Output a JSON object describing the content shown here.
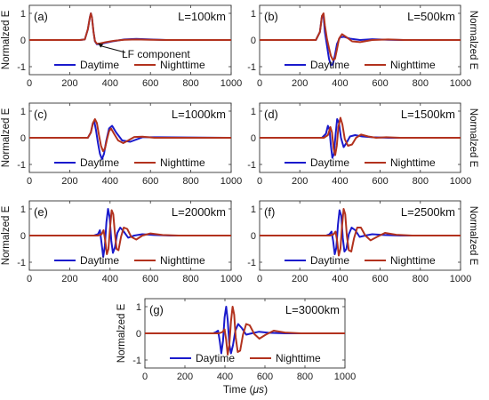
{
  "figure": {
    "ylabel": "Normalzed E",
    "xlabel": "Time (",
    "xlabel_unit": "μs",
    "xlabel_close": ")"
  },
  "chart_data": [
    {
      "type": "line",
      "panel": "(a)",
      "title": "L=100km",
      "ylabel": "Normalzed E",
      "xlim": [
        0,
        1000
      ],
      "ylim": [
        -1.3,
        1.3
      ],
      "xticks": [
        0,
        200,
        400,
        600,
        800,
        1000
      ],
      "yticks": [
        1,
        0,
        -1
      ],
      "xlabel": "",
      "legend_placement": "bottom",
      "annotation": {
        "text": "LF component",
        "arrow_to": [
          340,
          -0.12
        ]
      },
      "series": [
        {
          "name": "Daytime",
          "color": "#1a1acc",
          "x": [
            0,
            250,
            275,
            290,
            300,
            305,
            310,
            318,
            325,
            335,
            350,
            380,
            420,
            470,
            530,
            600,
            680,
            760,
            1000
          ],
          "y": [
            0,
            0,
            0.02,
            0.4,
            0.85,
            1.0,
            0.85,
            0.3,
            -0.05,
            -0.16,
            -0.15,
            -0.1,
            -0.04,
            0.02,
            0.04,
            0.02,
            0,
            0,
            0
          ]
        },
        {
          "name": "Nighttime",
          "color": "#b2321e",
          "x": [
            0,
            250,
            275,
            290,
            300,
            305,
            310,
            318,
            325,
            335,
            350,
            380,
            420,
            470,
            530,
            600,
            680,
            760,
            1000
          ],
          "y": [
            0,
            0,
            0.02,
            0.4,
            0.85,
            1.0,
            0.85,
            0.3,
            -0.04,
            -0.14,
            -0.13,
            -0.08,
            -0.03,
            0.01,
            0.02,
            0.01,
            0,
            0,
            0
          ]
        }
      ]
    },
    {
      "type": "line",
      "panel": "(b)",
      "title": "L=500km",
      "ylabel": "Normalzed E",
      "xlim": [
        0,
        1000
      ],
      "ylim": [
        -1.3,
        1.3
      ],
      "xticks": [
        0,
        200,
        400,
        600,
        800,
        1000
      ],
      "yticks": [
        1,
        0,
        -1
      ],
      "xlabel": "",
      "legend_placement": "bottom",
      "series": [
        {
          "name": "Daytime",
          "color": "#1a1acc",
          "x": [
            0,
            280,
            300,
            310,
            318,
            325,
            335,
            345,
            355,
            365,
            375,
            385,
            400,
            420,
            450,
            500,
            560,
            640,
            720,
            1000
          ],
          "y": [
            0,
            0,
            0.3,
            0.9,
            0.9,
            0.3,
            -0.2,
            -0.7,
            -0.95,
            -0.9,
            -0.55,
            -0.15,
            0.1,
            0.12,
            0.05,
            0.0,
            0.03,
            0.01,
            0,
            0
          ]
        },
        {
          "name": "Nighttime",
          "color": "#b2321e",
          "x": [
            0,
            280,
            300,
            310,
            318,
            325,
            335,
            345,
            355,
            365,
            375,
            385,
            395,
            410,
            430,
            460,
            500,
            560,
            640,
            720,
            1000
          ],
          "y": [
            0,
            0,
            0.3,
            0.9,
            1.0,
            0.55,
            0.05,
            -0.3,
            -0.6,
            -0.75,
            -0.7,
            -0.35,
            0.05,
            0.22,
            0.12,
            -0.05,
            -0.08,
            0.0,
            0.02,
            0,
            0
          ]
        }
      ]
    },
    {
      "type": "line",
      "panel": "(c)",
      "title": "L=1000km",
      "ylabel": "Normalzed E",
      "xlim": [
        0,
        1000
      ],
      "ylim": [
        -1.3,
        1.3
      ],
      "xticks": [
        0,
        200,
        400,
        600,
        800,
        1000
      ],
      "yticks": [
        1,
        0,
        -1
      ],
      "xlabel": "",
      "legend_placement": "bottom",
      "series": [
        {
          "name": "Daytime",
          "color": "#1a1acc",
          "x": [
            0,
            290,
            305,
            315,
            322,
            330,
            340,
            350,
            360,
            370,
            380,
            395,
            410,
            430,
            460,
            500,
            560,
            640,
            1000
          ],
          "y": [
            0,
            0,
            0.2,
            0.55,
            0.6,
            0.3,
            -0.2,
            -0.6,
            -0.8,
            -0.6,
            -0.15,
            0.35,
            0.45,
            0.2,
            -0.1,
            -0.15,
            0.02,
            0.02,
            0
          ]
        },
        {
          "name": "Nighttime",
          "color": "#b2321e",
          "x": [
            0,
            290,
            305,
            315,
            325,
            335,
            345,
            355,
            365,
            375,
            385,
            395,
            405,
            420,
            440,
            465,
            490,
            520,
            560,
            620,
            700,
            1000
          ],
          "y": [
            0,
            0,
            0.2,
            0.55,
            0.7,
            0.55,
            0.1,
            -0.3,
            -0.5,
            -0.4,
            -0.05,
            0.25,
            0.35,
            0.15,
            -0.1,
            -0.2,
            -0.1,
            0.03,
            0.04,
            0.0,
            0,
            0
          ]
        }
      ]
    },
    {
      "type": "line",
      "panel": "(d)",
      "title": "L=1500km",
      "ylabel": "Normalzed E",
      "xlim": [
        0,
        1000
      ],
      "ylim": [
        -1.3,
        1.3
      ],
      "xticks": [
        0,
        200,
        400,
        600,
        800,
        1000
      ],
      "yticks": [
        1,
        0,
        -1
      ],
      "xlabel": "",
      "legend_placement": "bottom",
      "series": [
        {
          "name": "Daytime",
          "color": "#1a1acc",
          "x": [
            0,
            310,
            330,
            340,
            348,
            355,
            362,
            370,
            378,
            386,
            395,
            405,
            418,
            432,
            450,
            475,
            510,
            560,
            640,
            1000
          ],
          "y": [
            0,
            0,
            0.15,
            0.45,
            0.3,
            -0.3,
            -0.75,
            -0.6,
            0.1,
            0.7,
            0.55,
            0.0,
            -0.35,
            -0.2,
            0.05,
            0.1,
            0.05,
            0.02,
            0,
            0
          ]
        },
        {
          "name": "Nighttime",
          "color": "#b2321e",
          "x": [
            0,
            320,
            340,
            352,
            360,
            368,
            376,
            384,
            392,
            402,
            412,
            424,
            440,
            460,
            480,
            505,
            540,
            580,
            630,
            700,
            1000
          ],
          "y": [
            0,
            0,
            0.1,
            0.4,
            0.2,
            -0.4,
            -0.65,
            -0.3,
            0.4,
            0.75,
            0.5,
            -0.05,
            -0.3,
            -0.25,
            0.0,
            0.12,
            0.05,
            0.0,
            0.02,
            0,
            0
          ]
        }
      ]
    },
    {
      "type": "line",
      "panel": "(e)",
      "title": "L=2000km",
      "ylabel": "Normalzed E",
      "xlim": [
        0,
        1000
      ],
      "ylim": [
        -1.3,
        1.3
      ],
      "xticks": [
        0,
        200,
        400,
        600,
        800,
        1000
      ],
      "yticks": [
        1,
        0,
        -1
      ],
      "xlabel": "",
      "legend_placement": "bottom",
      "series": [
        {
          "name": "Daytime",
          "color": "#1a1acc",
          "x": [
            0,
            320,
            340,
            350,
            358,
            366,
            374,
            382,
            390,
            398,
            406,
            414,
            424,
            436,
            450,
            468,
            490,
            520,
            560,
            620,
            700,
            1000
          ],
          "y": [
            0,
            0,
            0.05,
            0.2,
            -0.3,
            -0.8,
            -0.4,
            0.5,
            1.0,
            0.7,
            -0.2,
            -0.65,
            -0.45,
            0.1,
            0.3,
            0.15,
            -0.08,
            0.0,
            0.05,
            0.02,
            0,
            0
          ]
        },
        {
          "name": "Nighttime",
          "color": "#b2321e",
          "x": [
            0,
            340,
            358,
            368,
            376,
            384,
            392,
            400,
            408,
            416,
            424,
            432,
            442,
            454,
            468,
            485,
            505,
            530,
            560,
            600,
            660,
            740,
            1000
          ],
          "y": [
            0,
            0,
            0.05,
            0.2,
            -0.2,
            -0.7,
            -0.5,
            0.3,
            0.95,
            0.8,
            0.1,
            -0.5,
            -0.55,
            -0.05,
            0.3,
            0.25,
            -0.05,
            -0.15,
            0.0,
            0.08,
            0.02,
            0,
            0
          ]
        }
      ]
    },
    {
      "type": "line",
      "panel": "(f)",
      "title": "L=2500km",
      "ylabel": "Normalzed E",
      "xlim": [
        0,
        1000
      ],
      "ylim": [
        -1.3,
        1.3
      ],
      "xticks": [
        0,
        200,
        400,
        600,
        800,
        1000
      ],
      "yticks": [
        1,
        0,
        -1
      ],
      "xlabel": "",
      "legend_placement": "bottom",
      "series": [
        {
          "name": "Daytime",
          "color": "#1a1acc",
          "x": [
            0,
            330,
            348,
            358,
            366,
            374,
            382,
            390,
            398,
            406,
            414,
            422,
            432,
            444,
            458,
            476,
            498,
            526,
            560,
            620,
            700,
            1000
          ],
          "y": [
            0,
            0,
            0.05,
            0.15,
            -0.2,
            -0.7,
            -0.45,
            0.4,
            0.95,
            0.75,
            -0.1,
            -0.6,
            -0.5,
            0.05,
            0.3,
            0.2,
            -0.05,
            0.0,
            0.05,
            0.02,
            0,
            0
          ]
        },
        {
          "name": "Nighttime",
          "color": "#b2321e",
          "x": [
            0,
            350,
            368,
            378,
            386,
            394,
            402,
            410,
            418,
            426,
            434,
            444,
            456,
            470,
            486,
            504,
            526,
            552,
            584,
            624,
            680,
            760,
            1000
          ],
          "y": [
            0,
            0,
            0.05,
            0.15,
            -0.2,
            -0.75,
            -0.5,
            0.35,
            1.0,
            0.8,
            0.0,
            -0.55,
            -0.6,
            -0.1,
            0.3,
            0.3,
            0.0,
            -0.18,
            -0.05,
            0.1,
            0.03,
            0,
            0
          ]
        }
      ]
    },
    {
      "type": "line",
      "panel": "(g)",
      "title": "L=3000km",
      "ylabel": "Normalzed E",
      "xlabel": "Time (μs)",
      "xlim": [
        0,
        1000
      ],
      "ylim": [
        -1.3,
        1.3
      ],
      "xticks": [
        0,
        200,
        400,
        600,
        800,
        1000
      ],
      "yticks": [
        1,
        0,
        -1
      ],
      "legend_placement": "bottom",
      "series": [
        {
          "name": "Daytime",
          "color": "#1a1acc",
          "x": [
            0,
            340,
            356,
            366,
            374,
            382,
            390,
            398,
            406,
            414,
            422,
            430,
            440,
            452,
            466,
            484,
            506,
            534,
            570,
            620,
            700,
            1000
          ],
          "y": [
            0,
            0,
            0.05,
            0.1,
            -0.3,
            -0.75,
            -0.3,
            0.6,
            1.0,
            0.5,
            -0.4,
            -0.75,
            -0.45,
            0.1,
            0.35,
            0.2,
            -0.05,
            0.0,
            0.06,
            0.02,
            0,
            0
          ]
        },
        {
          "name": "Nighttime",
          "color": "#b2321e",
          "x": [
            0,
            370,
            388,
            398,
            406,
            414,
            422,
            430,
            438,
            446,
            454,
            464,
            476,
            490,
            506,
            524,
            546,
            572,
            604,
            644,
            700,
            780,
            1000
          ],
          "y": [
            0,
            0,
            0.05,
            0.15,
            -0.25,
            -0.8,
            -0.45,
            0.45,
            1.0,
            0.7,
            -0.15,
            -0.7,
            -0.65,
            -0.05,
            0.35,
            0.3,
            -0.02,
            -0.2,
            -0.05,
            0.1,
            0.03,
            0,
            0
          ]
        }
      ]
    }
  ]
}
